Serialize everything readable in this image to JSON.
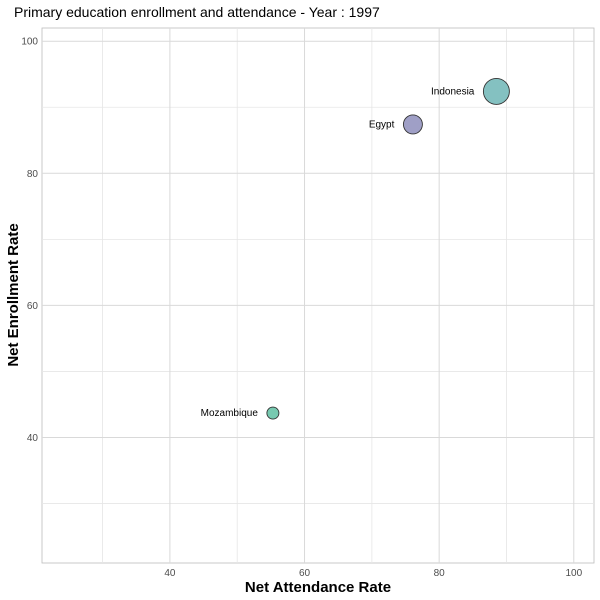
{
  "chart_data": {
    "type": "scatter",
    "title": "Primary education enrollment and attendance - Year : 1997",
    "xlabel": "Net Attendance Rate",
    "ylabel": "Net Enrollment Rate",
    "xlim": [
      21,
      103
    ],
    "ylim": [
      21,
      102
    ],
    "x_ticks": [
      40,
      60,
      80,
      100
    ],
    "y_ticks": [
      40,
      60,
      80,
      100
    ],
    "x_tick_labels": [
      "40",
      "60",
      "80",
      "100"
    ],
    "y_tick_labels": [
      "40",
      "60",
      "80",
      "100"
    ],
    "grid": true,
    "legend": "none",
    "points": [
      {
        "label": "Indonesia",
        "x": 88.5,
        "y": 92.4,
        "size": 3,
        "color": "#84c1c1"
      },
      {
        "label": "Egypt",
        "x": 76.1,
        "y": 87.4,
        "size": 2,
        "color": "#9f9fc6"
      },
      {
        "label": "Mozambique",
        "x": 55.3,
        "y": 43.7,
        "size": 1,
        "color": "#77c9b0"
      }
    ]
  }
}
